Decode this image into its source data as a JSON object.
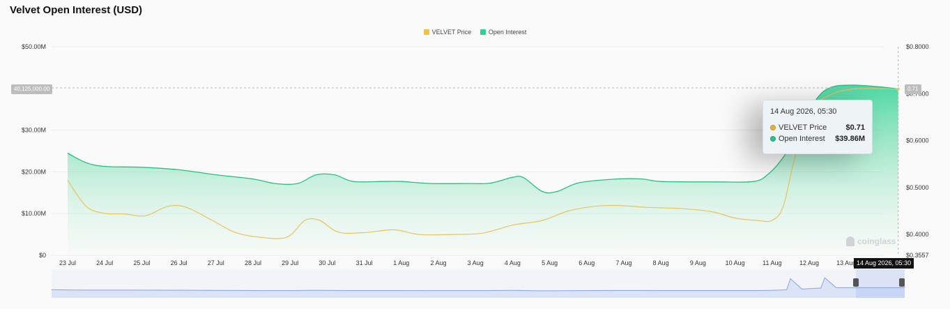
{
  "title": "Velvet Open Interest (USD)",
  "legend": [
    {
      "label": "VELVET Price",
      "color": "#f0c14b"
    },
    {
      "label": "Open Interest",
      "color": "#2fd194"
    }
  ],
  "tooltip": {
    "date": "14 Aug 2026, 05:30",
    "rows": [
      {
        "name": "VELVET Price",
        "value": "$0.71",
        "color": "#e3b341"
      },
      {
        "name": "Open Interest",
        "value": "$39.86M",
        "color": "#2fbf8a"
      }
    ]
  },
  "crosshair": {
    "y_label": "40,125,000.00",
    "price_label": "0.71",
    "x_label": "14 Aug 2026, 05:30"
  },
  "watermark": "coinglass",
  "chart_data": {
    "type": "area",
    "title": "Velvet Open Interest (USD)",
    "categories": [
      "23 Jul",
      "24 Jul",
      "25 Jul",
      "26 Jul",
      "27 Jul",
      "28 Jul",
      "29 Jul",
      "30 Jul",
      "31 Jul",
      "1 Aug",
      "2 Aug",
      "3 Aug",
      "4 Aug",
      "5 Aug",
      "6 Aug",
      "7 Aug",
      "8 Aug",
      "9 Aug",
      "10 Aug",
      "11 Aug",
      "12 Aug",
      "13 Aug",
      "14 Aug"
    ],
    "left_axis": {
      "ticks": [
        "$0",
        "$10.00M",
        "$20.00M",
        "$30.00M",
        "$50.00M"
      ],
      "tick_values": [
        0,
        10,
        20,
        30,
        50
      ],
      "range": [
        0,
        50
      ],
      "unit": "M USD"
    },
    "right_axis": {
      "ticks": [
        "$0.3557",
        "$0.4000",
        "$0.5000",
        "$0.6000",
        "$0.7000",
        "$0.8000"
      ],
      "tick_values": [
        0.3557,
        0.4,
        0.5,
        0.6,
        0.7,
        0.8
      ],
      "range": [
        0.3557,
        0.8
      ]
    },
    "series": [
      {
        "name": "Open Interest",
        "axis": "left",
        "color": "#2fd194",
        "points": [
          [
            0,
            24.5
          ],
          [
            0.5,
            22.2
          ],
          [
            1,
            21.3
          ],
          [
            2,
            21.1
          ],
          [
            3,
            20.5
          ],
          [
            4,
            19.3
          ],
          [
            5,
            18.3
          ],
          [
            5.6,
            17.2
          ],
          [
            6.2,
            17.2
          ],
          [
            6.7,
            19.3
          ],
          [
            7.2,
            19.3
          ],
          [
            7.7,
            17.7
          ],
          [
            8.5,
            17.7
          ],
          [
            9,
            17.7
          ],
          [
            9.8,
            17.2
          ],
          [
            10.8,
            17.2
          ],
          [
            11.4,
            17.3
          ],
          [
            12,
            18.7
          ],
          [
            12.3,
            18.6
          ],
          [
            12.8,
            15.3
          ],
          [
            13.2,
            15.3
          ],
          [
            13.8,
            17.4
          ],
          [
            14.8,
            18.3
          ],
          [
            15.5,
            18.3
          ],
          [
            16,
            17.7
          ],
          [
            17.5,
            17.6
          ],
          [
            18.5,
            17.7
          ],
          [
            18.9,
            19.5
          ],
          [
            19.3,
            23.5
          ],
          [
            19.7,
            29.5
          ],
          [
            20.2,
            37.5
          ],
          [
            20.6,
            40.3
          ],
          [
            21.2,
            40.8
          ],
          [
            22,
            40.3
          ],
          [
            22.4,
            39.86
          ]
        ]
      },
      {
        "name": "VELVET Price",
        "axis": "right",
        "color": "#e8c45a",
        "points": [
          [
            0,
            0.516
          ],
          [
            0.5,
            0.46
          ],
          [
            1,
            0.445
          ],
          [
            1.5,
            0.444
          ],
          [
            2.1,
            0.44
          ],
          [
            2.7,
            0.46
          ],
          [
            3.2,
            0.458
          ],
          [
            3.9,
            0.43
          ],
          [
            4.5,
            0.405
          ],
          [
            5.1,
            0.395
          ],
          [
            5.9,
            0.394
          ],
          [
            6.4,
            0.43
          ],
          [
            6.8,
            0.43
          ],
          [
            7.3,
            0.405
          ],
          [
            8,
            0.404
          ],
          [
            8.8,
            0.41
          ],
          [
            9.5,
            0.4
          ],
          [
            10.4,
            0.4
          ],
          [
            11.2,
            0.403
          ],
          [
            12,
            0.42
          ],
          [
            12.8,
            0.43
          ],
          [
            13.5,
            0.45
          ],
          [
            14.2,
            0.46
          ],
          [
            14.8,
            0.462
          ],
          [
            15.6,
            0.458
          ],
          [
            16.6,
            0.455
          ],
          [
            17.4,
            0.448
          ],
          [
            18,
            0.435
          ],
          [
            18.6,
            0.43
          ],
          [
            19,
            0.43
          ],
          [
            19.3,
            0.46
          ],
          [
            19.6,
            0.56
          ],
          [
            20,
            0.66
          ],
          [
            20.5,
            0.695
          ],
          [
            21.2,
            0.71
          ],
          [
            22.4,
            0.71
          ]
        ]
      }
    ],
    "grid": true,
    "legend_position": "top-center"
  }
}
